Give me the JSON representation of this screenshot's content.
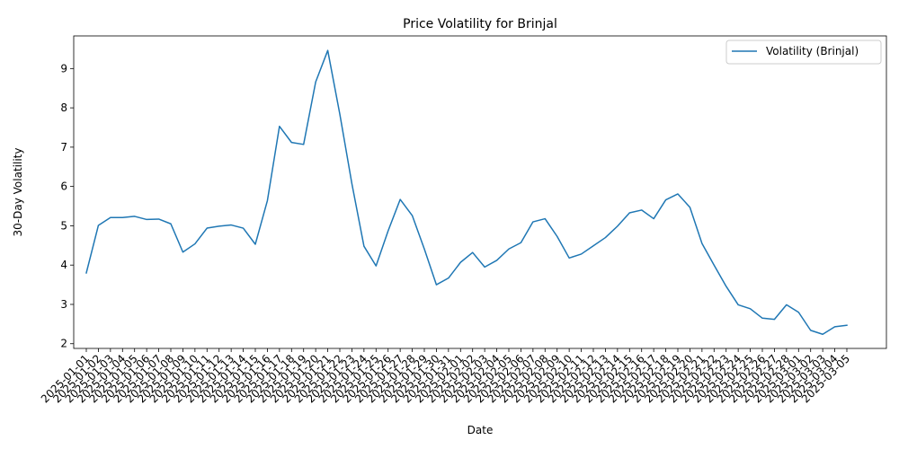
{
  "chart_data": {
    "type": "line",
    "title": "Price Volatility for Brinjal",
    "xlabel": "Date",
    "ylabel": "30-Day Volatility",
    "ylim": [
      1.88,
      9.83
    ],
    "yticks": [
      2,
      3,
      4,
      5,
      6,
      7,
      8,
      9
    ],
    "grid": false,
    "legend_position": "top-right",
    "x": [
      "2025-01-01",
      "2025-01-02",
      "2025-01-03",
      "2025-01-04",
      "2025-01-05",
      "2025-01-06",
      "2025-01-07",
      "2025-01-08",
      "2025-01-09",
      "2025-01-10",
      "2025-01-11",
      "2025-01-12",
      "2025-01-13",
      "2025-01-14",
      "2025-01-15",
      "2025-01-16",
      "2025-01-17",
      "2025-01-18",
      "2025-01-19",
      "2025-01-20",
      "2025-01-21",
      "2025-01-22",
      "2025-01-23",
      "2025-01-24",
      "2025-01-25",
      "2025-01-26",
      "2025-01-27",
      "2025-01-28",
      "2025-01-29",
      "2025-01-30",
      "2025-01-31",
      "2025-02-01",
      "2025-02-02",
      "2025-02-03",
      "2025-02-04",
      "2025-02-05",
      "2025-02-06",
      "2025-02-07",
      "2025-02-08",
      "2025-02-09",
      "2025-02-10",
      "2025-02-11",
      "2025-02-12",
      "2025-02-13",
      "2025-02-14",
      "2025-02-15",
      "2025-02-16",
      "2025-02-17",
      "2025-02-18",
      "2025-02-19",
      "2025-02-20",
      "2025-02-21",
      "2025-02-22",
      "2025-02-23",
      "2025-02-24",
      "2025-02-25",
      "2025-02-26",
      "2025-02-27",
      "2025-02-28",
      "2025-03-01",
      "2025-03-02",
      "2025-03-03",
      "2025-03-04",
      "2025-03-05"
    ],
    "series": [
      {
        "name": "Volatility (Brinjal)",
        "color": "#1f77b4",
        "values": [
          3.8,
          5.01,
          5.21,
          5.21,
          5.24,
          5.16,
          5.17,
          5.05,
          4.33,
          4.54,
          4.94,
          4.99,
          5.02,
          4.94,
          4.53,
          5.64,
          7.53,
          7.12,
          7.07,
          8.66,
          9.46,
          7.84,
          6.07,
          4.48,
          3.98,
          4.87,
          5.67,
          5.26,
          4.41,
          3.5,
          3.67,
          4.07,
          4.32,
          3.95,
          4.12,
          4.41,
          4.57,
          5.1,
          5.18,
          4.73,
          4.18,
          4.28,
          4.49,
          4.7,
          4.99,
          5.33,
          5.4,
          5.18,
          5.66,
          5.81,
          5.47,
          4.55,
          4.0,
          3.46,
          2.99,
          2.89,
          2.65,
          2.62,
          2.99,
          2.8,
          2.34,
          2.24,
          2.43,
          2.47
        ]
      }
    ]
  }
}
